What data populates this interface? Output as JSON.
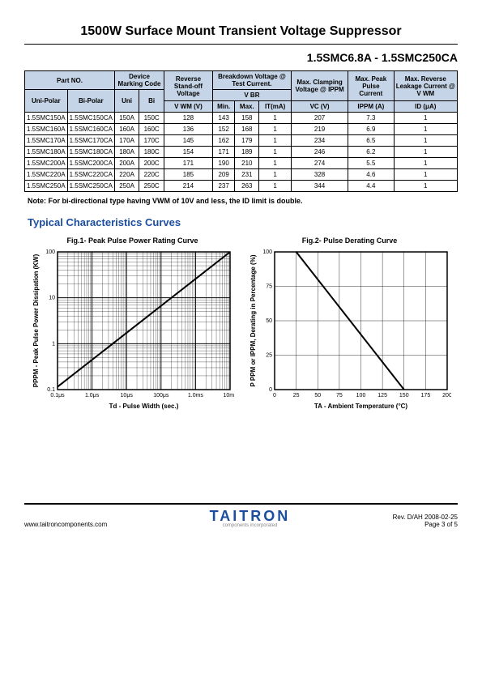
{
  "title": "1500W Surface Mount Transient Voltage Suppressor",
  "subtitle": "1.5SMC6.8A - 1.5SMC250CA",
  "table": {
    "head": {
      "partNo": "Part NO.",
      "devMark": "Device Marking Code",
      "standoff": "Reverse Stand-off Voltage",
      "breakdown": "Breakdown Voltage @ Test Current.",
      "vbr": "V BR",
      "clamp": "Max. Clamping Voltage @ IPPM",
      "peak": "Max. Peak Pulse Current",
      "leak": "Max. Reverse Leakage Current @ V WM",
      "uni": "Uni-Polar",
      "bi": "Bi-Polar",
      "u": "Uni",
      "b": "Bi",
      "vwm": "V WM  (V)",
      "min": "Min.",
      "max": "Max.",
      "it": "IT(mA)",
      "vc": "VC  (V)",
      "ippm": "IPPM (A)",
      "id": "ID  (μA)"
    },
    "rows": [
      [
        "1.5SMC150A",
        "1.5SMC150CA",
        "150A",
        "150C",
        "128",
        "143",
        "158",
        "1",
        "207",
        "7.3",
        "1"
      ],
      [
        "1.5SMC160A",
        "1.5SMC160CA",
        "160A",
        "160C",
        "136",
        "152",
        "168",
        "1",
        "219",
        "6.9",
        "1"
      ],
      [
        "1.5SMC170A",
        "1.5SMC170CA",
        "170A",
        "170C",
        "145",
        "162",
        "179",
        "1",
        "234",
        "6.5",
        "1"
      ],
      [
        "1.5SMC180A",
        "1.5SMC180CA",
        "180A",
        "180C",
        "154",
        "171",
        "189",
        "1",
        "246",
        "6.2",
        "1"
      ],
      [
        "1.5SMC200A",
        "1.5SMC200CA",
        "200A",
        "200C",
        "171",
        "190",
        "210",
        "1",
        "274",
        "5.5",
        "1"
      ],
      [
        "1.5SMC220A",
        "1.5SMC220CA",
        "220A",
        "220C",
        "185",
        "209",
        "231",
        "1",
        "328",
        "4.6",
        "1"
      ],
      [
        "1.5SMC250A",
        "1.5SMC250CA",
        "250A",
        "250C",
        "214",
        "237",
        "263",
        "1",
        "344",
        "4.4",
        "1"
      ]
    ]
  },
  "note": "Note:   For bi-directional type having VWM of 10V and less, the ID limit is double.",
  "curvesTitle": "Typical Characteristics Curves",
  "fig1": {
    "title": "Fig.1- Peak Pulse Power Rating Curve",
    "ylabel": "PPPM - Peak Pulse Power Dissipation (KW)",
    "xlabel": "Td - Pulse Width (sec.)",
    "xticks": [
      "0.1μs",
      "1.0μs",
      "10μs",
      "100μs",
      "1.0ms",
      "10ms"
    ],
    "yticks": [
      "0.1",
      "1",
      "10",
      "100"
    ],
    "line": [
      [
        0,
        0.02
      ],
      [
        1,
        1
      ]
    ],
    "color": "#000"
  },
  "fig2": {
    "title": "Fig.2- Pulse Derating Curve",
    "ylabel": "P PPM or IPPM, Derating in Percentage (%)",
    "xlabel": "TA - Ambient Temperature (°C)",
    "xticks": [
      "0",
      "25",
      "50",
      "75",
      "100",
      "125",
      "150",
      "175",
      "200"
    ],
    "yticks": [
      "0",
      "25",
      "50",
      "75",
      "100"
    ],
    "line": [
      [
        25,
        100
      ],
      [
        150,
        0
      ]
    ],
    "xrange": [
      0,
      200
    ],
    "yrange": [
      0,
      100
    ],
    "color": "#000"
  },
  "footer": {
    "url": "www.taitroncomponents.com",
    "logo": "TAITRON",
    "sub": "components incorporated",
    "rev": "Rev. D/AH 2008-02-25",
    "page": "Page 3 of 5"
  }
}
